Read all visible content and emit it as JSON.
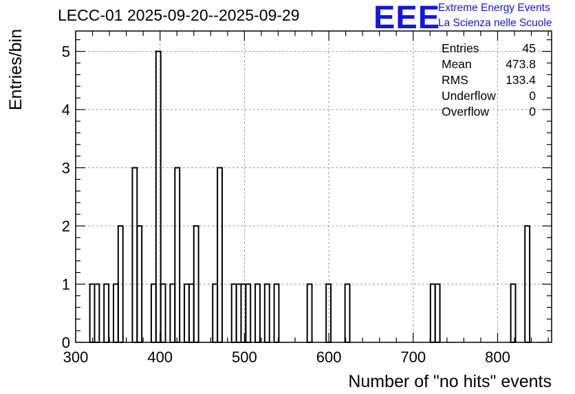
{
  "chart_data": {
    "type": "histogram",
    "title": "LECC-01 2025-09-20--2025-09-29",
    "xlabel": "Number of \"no hits\" events",
    "ylabel": "Entries/bin",
    "xlim": [
      300,
      864
    ],
    "ylim": [
      0,
      5.35
    ],
    "bin_width": 5.6,
    "x_ticks": [
      300,
      400,
      500,
      600,
      700,
      800
    ],
    "y_ticks": [
      0,
      1,
      2,
      3,
      4,
      5
    ],
    "grid": true,
    "bins": [
      {
        "x": 319.6,
        "y": 1
      },
      {
        "x": 325.2,
        "y": 1
      },
      {
        "x": 336.4,
        "y": 1
      },
      {
        "x": 347.6,
        "y": 1
      },
      {
        "x": 353.2,
        "y": 2
      },
      {
        "x": 370.0,
        "y": 3
      },
      {
        "x": 375.6,
        "y": 2
      },
      {
        "x": 392.4,
        "y": 1
      },
      {
        "x": 398.0,
        "y": 5
      },
      {
        "x": 403.6,
        "y": 1
      },
      {
        "x": 414.8,
        "y": 1
      },
      {
        "x": 420.4,
        "y": 3
      },
      {
        "x": 431.6,
        "y": 1
      },
      {
        "x": 437.2,
        "y": 1
      },
      {
        "x": 442.8,
        "y": 2
      },
      {
        "x": 465.2,
        "y": 1
      },
      {
        "x": 470.8,
        "y": 3
      },
      {
        "x": 487.6,
        "y": 1
      },
      {
        "x": 493.2,
        "y": 1
      },
      {
        "x": 498.8,
        "y": 1
      },
      {
        "x": 504.4,
        "y": 1
      },
      {
        "x": 515.6,
        "y": 1
      },
      {
        "x": 526.8,
        "y": 1
      },
      {
        "x": 538.0,
        "y": 1
      },
      {
        "x": 577.2,
        "y": 1
      },
      {
        "x": 599.6,
        "y": 1
      },
      {
        "x": 622.0,
        "y": 1
      },
      {
        "x": 723.2,
        "y": 1
      },
      {
        "x": 728.8,
        "y": 1
      },
      {
        "x": 818.4,
        "y": 1
      },
      {
        "x": 835.2,
        "y": 2
      }
    ],
    "stats": [
      {
        "label": "Entries",
        "value": "45"
      },
      {
        "label": "Mean",
        "value": "473.8"
      },
      {
        "label": "RMS",
        "value": "133.4"
      },
      {
        "label": "Underflow",
        "value": "0"
      },
      {
        "label": "Overflow",
        "value": "0"
      }
    ]
  },
  "logo": {
    "text": "EEE",
    "line1": "Extreme Energy Events",
    "line2": "La Scienza nelle Scuole",
    "color": "#1515e0"
  }
}
